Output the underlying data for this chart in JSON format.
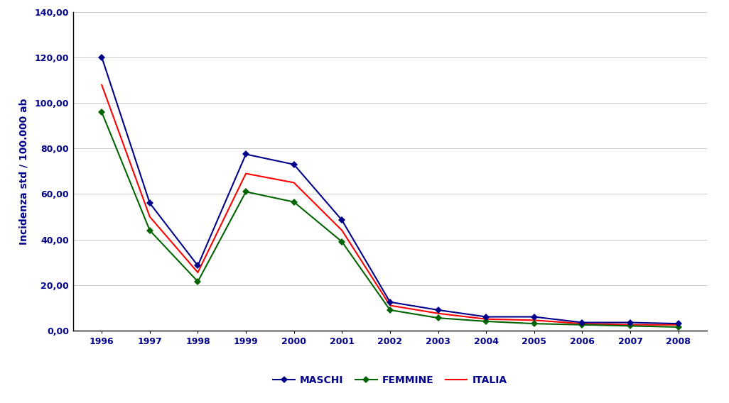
{
  "years": [
    1996,
    1997,
    1998,
    1999,
    2000,
    2001,
    2002,
    2003,
    2004,
    2005,
    2006,
    2007,
    2008
  ],
  "maschi": [
    120.2,
    56.0,
    28.5,
    77.5,
    73.0,
    48.5,
    12.5,
    9.0,
    6.0,
    6.0,
    3.5,
    3.5,
    3.0
  ],
  "femmine": [
    96.0,
    44.0,
    21.5,
    61.0,
    56.5,
    39.0,
    9.0,
    5.5,
    4.0,
    3.0,
    2.5,
    2.0,
    1.5
  ],
  "italia": [
    108.0,
    50.0,
    25.5,
    69.0,
    65.0,
    44.0,
    11.0,
    7.5,
    5.0,
    4.5,
    3.0,
    2.5,
    2.5
  ],
  "maschi_color": "#00008B",
  "femmine_color": "#006400",
  "italia_color": "#FF0000",
  "ylabel": "Incidenza std / 100.000 ab",
  "ylim": [
    0,
    140
  ],
  "yticks": [
    0,
    20,
    40,
    60,
    80,
    100,
    120,
    140
  ],
  "ytick_labels": [
    "0,00",
    "20,00",
    "40,00",
    "60,00",
    "80,00",
    "100,00",
    "120,00",
    "140,00"
  ],
  "background_color": "#FFFFFF",
  "grid_color": "#C8C8C8",
  "legend_labels": [
    "MASCHI",
    "FEMMINE",
    "ITALIA"
  ],
  "tick_label_color": "#00008B",
  "axis_color": "#000000"
}
